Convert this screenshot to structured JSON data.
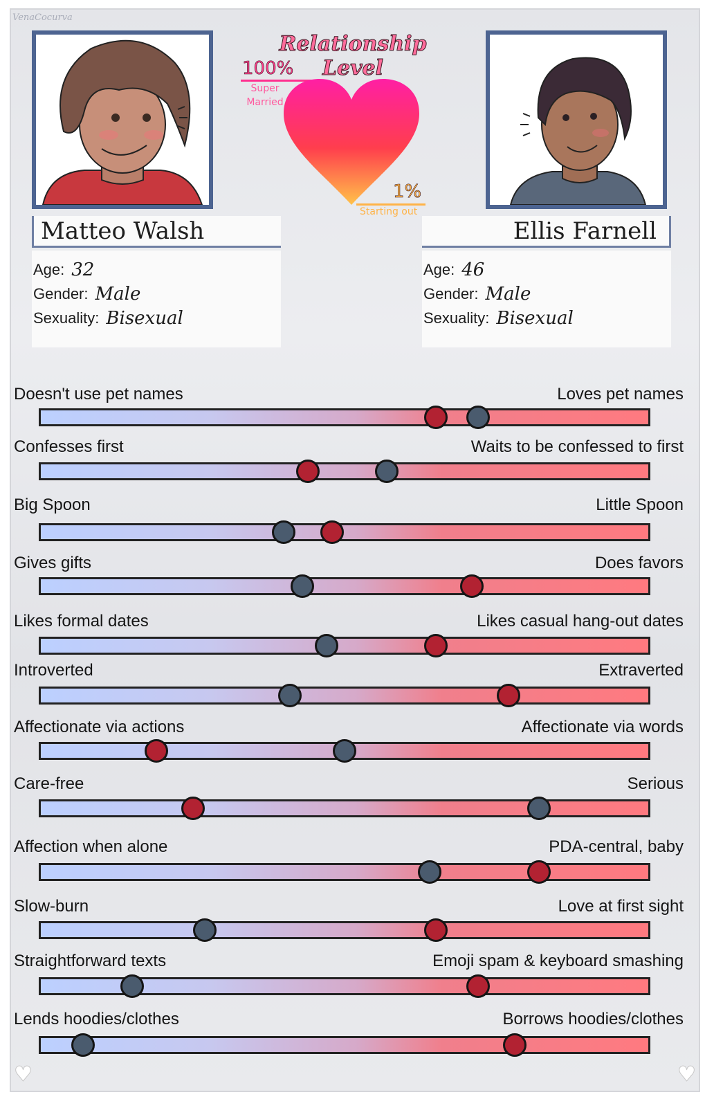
{
  "watermark": "VenaCocurva",
  "relationship": {
    "title": "Relationship Level",
    "high_pct": "100%",
    "high_label": "Super Married",
    "low_pct": "1%",
    "low_label": "Starting out",
    "colors": {
      "top": "#ff1fa4",
      "mid": "#ff3e4d",
      "bottom": "#ffc24a"
    }
  },
  "left_person": {
    "name": "Matteo Walsh",
    "age_label": "Age:",
    "age": "32",
    "gender_label": "Gender:",
    "gender": "Male",
    "sexuality_label": "Sexuality:",
    "sexuality": "Bisexual",
    "marker_color": "#b22232"
  },
  "right_person": {
    "name": "Ellis Farnell",
    "age_label": "Age:",
    "age": "46",
    "gender_label": "Gender:",
    "gender": "Male",
    "sexuality_label": "Sexuality:",
    "sexuality": "Bisexual",
    "marker_color": "#4a5b6e"
  },
  "sliders": [
    {
      "left": "Doesn't use pet names",
      "right": "Loves pet names",
      "red": 0.65,
      "blue": 0.72
    },
    {
      "left": "Confesses first",
      "right": "Waits to be confessed to first",
      "red": 0.44,
      "blue": 0.57
    },
    {
      "left": "Big Spoon",
      "right": "Little Spoon",
      "red": 0.48,
      "blue": 0.4
    },
    {
      "left": "Gives gifts",
      "right": "Does favors",
      "red": 0.71,
      "blue": 0.43
    },
    {
      "left": "Likes formal dates",
      "right": "Likes casual hang-out dates",
      "red": 0.65,
      "blue": 0.47
    },
    {
      "left": "Introverted",
      "right": "Extraverted",
      "red": 0.77,
      "blue": 0.41
    },
    {
      "left": "Affectionate via actions",
      "right": "Affectionate via words",
      "red": 0.19,
      "blue": 0.5
    },
    {
      "left": "Care-free",
      "right": "Serious",
      "red": 0.25,
      "blue": 0.82
    },
    {
      "left": "Affection when alone",
      "right": "PDA-central, baby",
      "red": 0.82,
      "blue": 0.64
    },
    {
      "left": "Slow-burn",
      "right": "Love at first sight",
      "red": 0.65,
      "blue": 0.27
    },
    {
      "left": "Straightforward texts",
      "right": "Emoji spam & keyboard smashing",
      "red": 0.72,
      "blue": 0.15
    },
    {
      "left": "Lends hoodies/clothes",
      "right": "Borrows hoodies/clothes",
      "red": 0.78,
      "blue": 0.07
    }
  ]
}
